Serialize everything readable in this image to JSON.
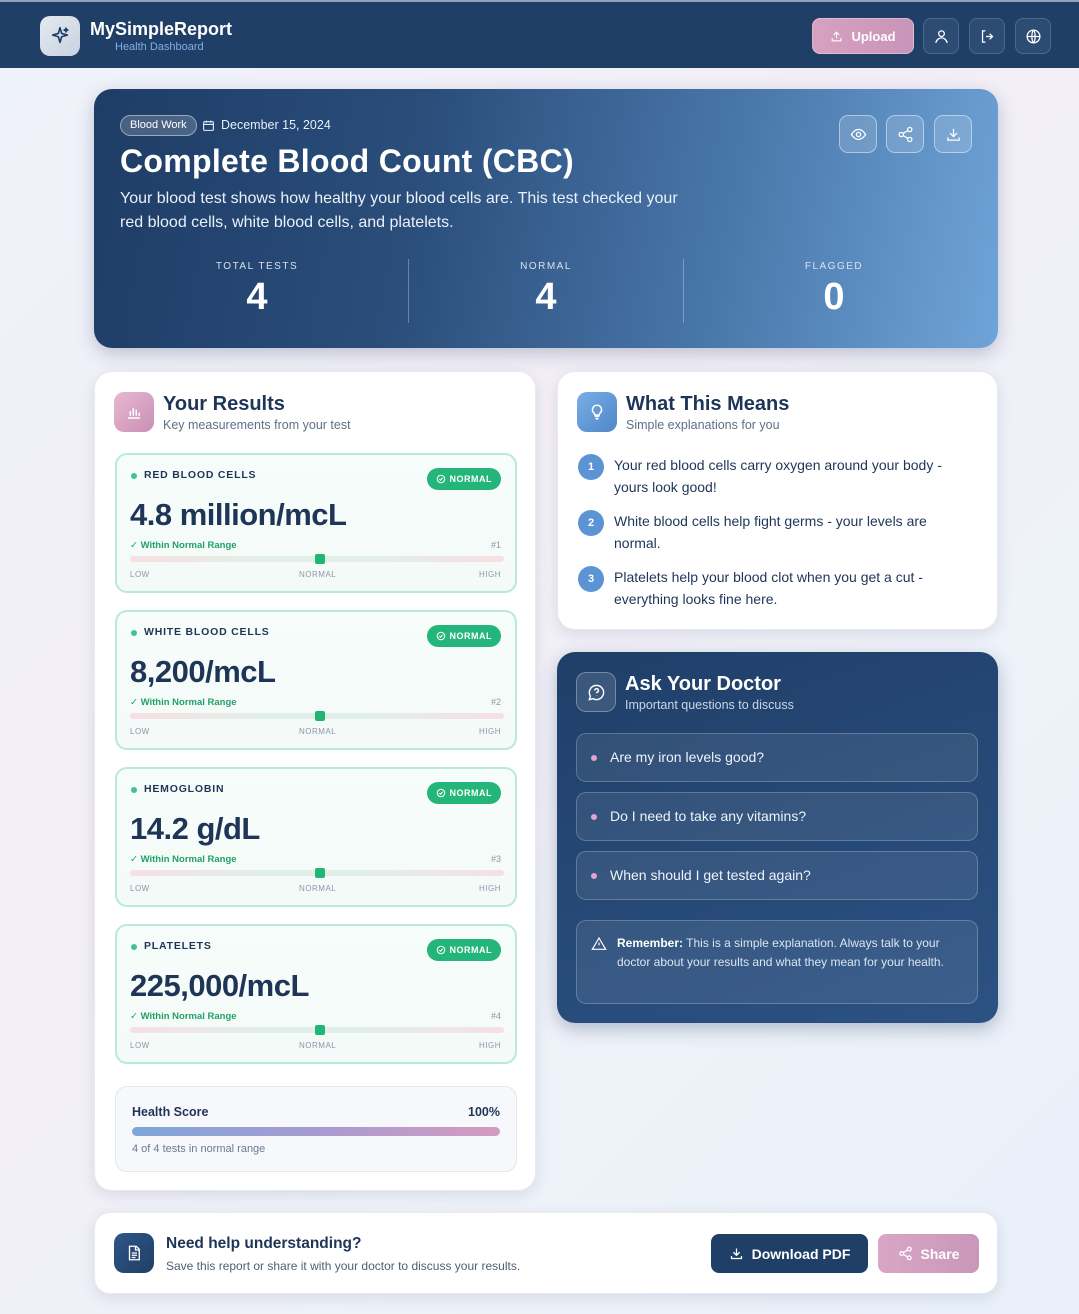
{
  "app": {
    "name": "MySimpleReport",
    "subtitle": "Health Dashboard",
    "upload_label": "Upload"
  },
  "hero": {
    "tag": "Blood Work",
    "date": "December 15, 2024",
    "title": "Complete Blood Count (CBC)",
    "description": "Your blood test shows how healthy your blood cells are. This test checked your red blood cells, white blood cells, and platelets.",
    "stats": [
      {
        "label": "TOTAL TESTS",
        "value": "4"
      },
      {
        "label": "NORMAL",
        "value": "4"
      },
      {
        "label": "FLAGGED",
        "value": "0"
      }
    ]
  },
  "results": {
    "title": "Your Results",
    "subtitle": "Key measurements from your test",
    "items": [
      {
        "name": "RED BLOOD CELLS",
        "badge": "NORMAL",
        "value": "4.8 million/mcL",
        "range_text": "✓ Within Normal Range",
        "index": "#1",
        "low": "LOW",
        "normal": "NORMAL",
        "high": "HIGH"
      },
      {
        "name": "WHITE BLOOD CELLS",
        "badge": "NORMAL",
        "value": "8,200/mcL",
        "range_text": "✓ Within Normal Range",
        "index": "#2",
        "low": "LOW",
        "normal": "NORMAL",
        "high": "HIGH"
      },
      {
        "name": "HEMOGLOBIN",
        "badge": "NORMAL",
        "value": "14.2 g/dL",
        "range_text": "✓ Within Normal Range",
        "index": "#3",
        "low": "LOW",
        "normal": "NORMAL",
        "high": "HIGH"
      },
      {
        "name": "PLATELETS",
        "badge": "NORMAL",
        "value": "225,000/mcL",
        "range_text": "✓ Within Normal Range",
        "index": "#4",
        "low": "LOW",
        "normal": "NORMAL",
        "high": "HIGH"
      }
    ],
    "health_score": {
      "label": "Health Score",
      "value": "100%",
      "note": "4 of 4 tests in normal range"
    }
  },
  "means": {
    "title": "What This Means",
    "subtitle": "Simple explanations for you",
    "items": [
      {
        "num": "1",
        "text": "Your red blood cells carry oxygen around your body - yours look good!"
      },
      {
        "num": "2",
        "text": "White blood cells help fight germs - your levels are normal."
      },
      {
        "num": "3",
        "text": "Platelets help your blood clot when you get a cut - everything looks fine here."
      }
    ]
  },
  "doctor": {
    "title": "Ask Your Doctor",
    "subtitle": "Important questions to discuss",
    "questions": [
      "Are my iron levels good?",
      "Do I need to take any vitamins?",
      "When should I get tested again?"
    ],
    "remember_label": "Remember:",
    "remember_text": "This is a simple explanation. Always talk to your doctor about your results and what they mean for your health."
  },
  "help": {
    "title": "Need help understanding?",
    "subtitle": "Save this report or share it with your doctor to discuss your results.",
    "download_label": "Download PDF",
    "share_label": "Share"
  },
  "colors": {
    "navy": "#1f3f66",
    "accent_pink": "#d7a1c0",
    "normal_green": "#24b57a",
    "accent_blue": "#5b93d4"
  }
}
